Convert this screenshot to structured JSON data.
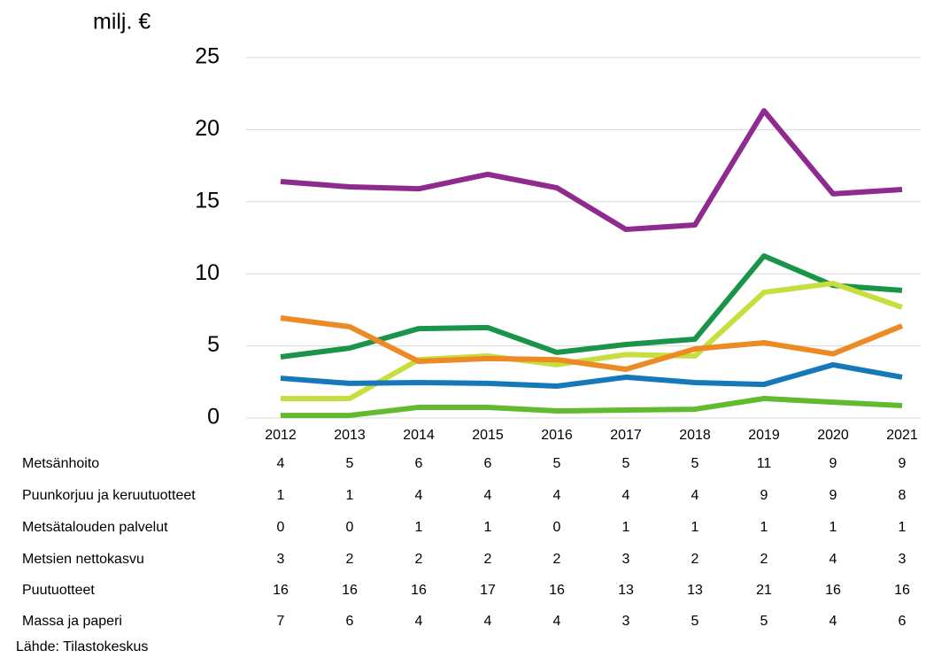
{
  "chart_data": {
    "type": "line",
    "y_label": "milj. €",
    "source": "Lähde: Tilastokeskus",
    "categories": [
      "2012",
      "2013",
      "2014",
      "2015",
      "2016",
      "2017",
      "2018",
      "2019",
      "2020",
      "2021"
    ],
    "ylim": [
      0,
      25
    ],
    "yticks": [
      0,
      5,
      10,
      15,
      20,
      25
    ],
    "grid": true,
    "series": [
      {
        "name": "Metsänhoito",
        "color": "#1a9448",
        "values": [
          4.24,
          4.85,
          6.2,
          6.27,
          4.55,
          5.1,
          5.47,
          11.24,
          9.2,
          8.85
        ],
        "value_labels": [
          "4",
          "5",
          "6",
          "6",
          "5",
          "5",
          "5",
          "11",
          "9",
          "9"
        ]
      },
      {
        "name": "Puunkorjuu ja keruutuotteet",
        "color": "#c8dd3e",
        "values": [
          1.35,
          1.35,
          4.05,
          4.3,
          3.7,
          4.4,
          4.3,
          8.72,
          9.34,
          7.68
        ],
        "value_labels": [
          "1",
          "1",
          "4",
          "4",
          "4",
          "4",
          "4",
          "9",
          "9",
          "8"
        ]
      },
      {
        "name": "Metsätalouden palvelut",
        "color": "#62bb2e",
        "values": [
          0.18,
          0.18,
          0.74,
          0.74,
          0.49,
          0.55,
          0.61,
          1.35,
          1.1,
          0.86
        ],
        "value_labels": [
          "0",
          "0",
          "1",
          "1",
          "0",
          "1",
          "1",
          "1",
          "1",
          "1"
        ]
      },
      {
        "name": "Metsien nettokasvu",
        "color": "#1579b9",
        "values": [
          2.76,
          2.4,
          2.46,
          2.4,
          2.21,
          2.83,
          2.46,
          2.33,
          3.69,
          2.83
        ],
        "value_labels": [
          "3",
          "2",
          "2",
          "2",
          "2",
          "3",
          "2",
          "2",
          "4",
          "3"
        ]
      },
      {
        "name": "Puutuotteet",
        "color": "#8f2b8f",
        "values": [
          16.4,
          16.03,
          15.9,
          16.9,
          15.97,
          13.08,
          13.39,
          21.31,
          15.55,
          15.85
        ],
        "value_labels": [
          "16",
          "16",
          "16",
          "17",
          "16",
          "13",
          "13",
          "21",
          "16",
          "16"
        ]
      },
      {
        "name": "Massa ja paperi",
        "color": "#ec8a26",
        "values": [
          6.94,
          6.33,
          3.93,
          4.12,
          4.05,
          3.38,
          4.79,
          5.22,
          4.45,
          6.39
        ],
        "value_labels": [
          "7",
          "6",
          "4",
          "4",
          "4",
          "3",
          "5",
          "5",
          "4",
          "6"
        ]
      }
    ]
  }
}
